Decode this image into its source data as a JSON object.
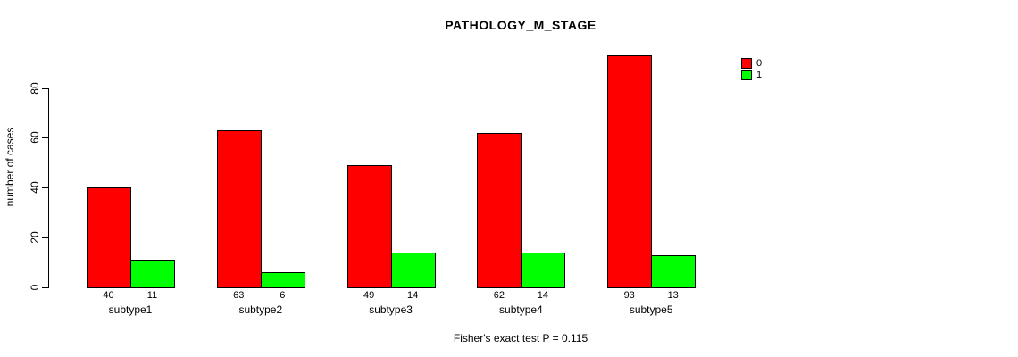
{
  "chart_data": {
    "type": "bar",
    "title": "PATHOLOGY_M_STAGE",
    "xlabel": "",
    "ylabel": "number of cases",
    "categories": [
      "subtype1",
      "subtype2",
      "subtype3",
      "subtype4",
      "subtype5"
    ],
    "series": [
      {
        "name": "0",
        "color": "#FF0000",
        "values": [
          40,
          63,
          49,
          62,
          93
        ]
      },
      {
        "name": "1",
        "color": "#00FF00",
        "values": [
          11,
          6,
          14,
          14,
          13
        ]
      }
    ],
    "bar_value_labels": [
      [
        "40",
        "11"
      ],
      [
        "63",
        "6"
      ],
      [
        "49",
        "14"
      ],
      [
        "62",
        "14"
      ],
      [
        "93",
        "13"
      ]
    ],
    "y_ticks": [
      0,
      20,
      40,
      60,
      80
    ],
    "ylim": [
      0,
      97
    ],
    "grid": false,
    "legend_position": "top-right",
    "legend_entries": [
      "0",
      "1"
    ],
    "annotation": "Fisher's exact test P = 0.115",
    "colors": {
      "background": "#FFFFFF",
      "axis": "#000000",
      "text": "#000000",
      "series0": "#FF0000",
      "series1": "#00FF00"
    }
  }
}
